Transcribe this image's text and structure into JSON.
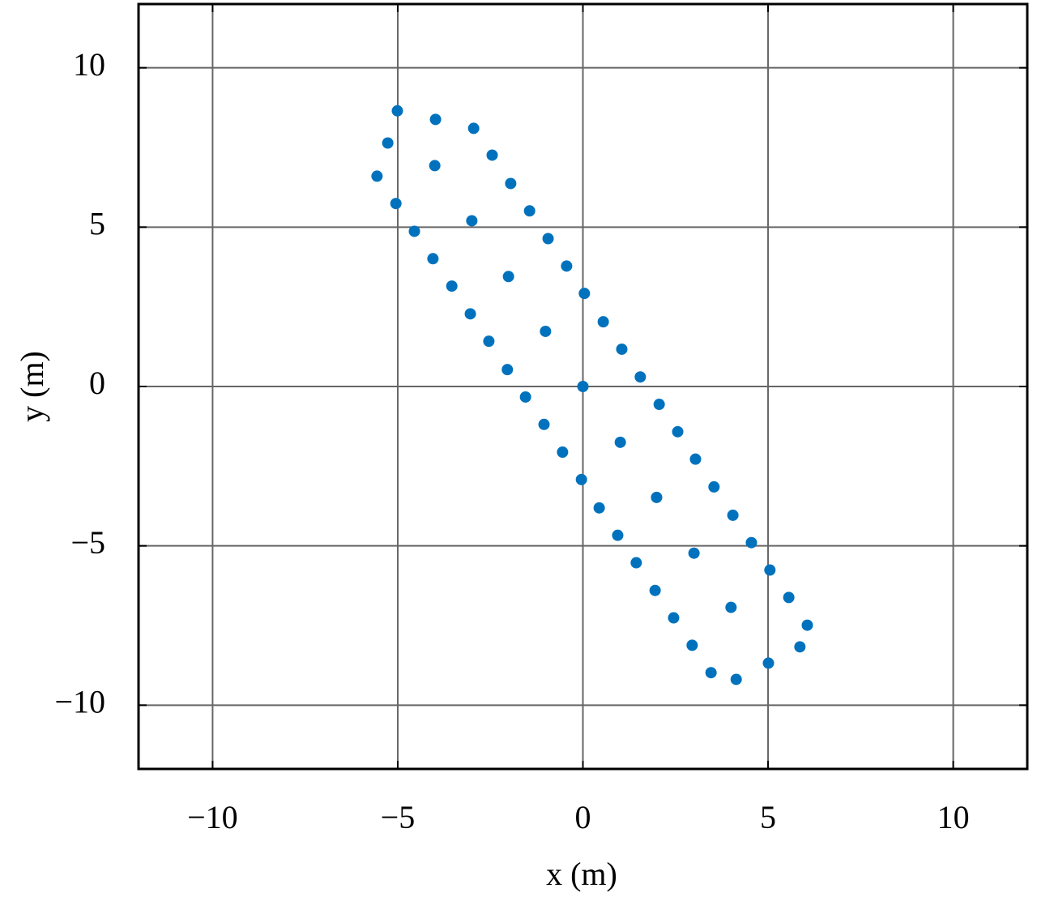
{
  "chart_data": {
    "type": "scatter",
    "xlabel": "x (m)",
    "ylabel": "y (m)",
    "color": "#0072bd",
    "grid": true,
    "xlim": [
      -12,
      12
    ],
    "ylim": [
      -12,
      12
    ],
    "xticks": [
      {
        "value": -10,
        "label": "−10"
      },
      {
        "value": -5,
        "label": "−5"
      },
      0,
      5,
      10
    ],
    "yticks": [
      {
        "value": -10,
        "label": "−10"
      },
      {
        "value": -5,
        "label": "−5"
      },
      0,
      5,
      10
    ],
    "x": [
      -5.01,
      -3.98,
      -2.95,
      -5.27,
      -2.45,
      -4.0,
      -5.56,
      -1.95,
      -5.05,
      -1.44,
      -3.0,
      -4.55,
      -0.94,
      -4.05,
      -0.44,
      -2.01,
      -3.54,
      0.04,
      -3.04,
      0.55,
      -1.01,
      -2.54,
      1.05,
      -2.04,
      1.55,
      0,
      -1.55,
      2.06,
      -1.05,
      2.56,
      1.01,
      -0.55,
      3.04,
      -0.04,
      3.54,
      1.99,
      0.44,
      4.05,
      0.94,
      4.55,
      3.0,
      1.44,
      5.05,
      1.95,
      5.56,
      4.0,
      2.45,
      6.06,
      2.95,
      5.86,
      3.46,
      5.01,
      4.14
    ],
    "values": [
      8.65,
      8.38,
      8.1,
      7.64,
      7.26,
      6.93,
      6.6,
      6.37,
      5.74,
      5.51,
      5.2,
      4.87,
      4.64,
      4.01,
      3.78,
      3.45,
      3.15,
      2.92,
      2.28,
      2.03,
      1.73,
      1.42,
      1.17,
      0.53,
      0.3,
      0,
      -0.33,
      -0.56,
      -1.19,
      -1.42,
      -1.75,
      -2.06,
      -2.28,
      -2.92,
      -3.15,
      -3.48,
      -3.81,
      -4.04,
      -4.67,
      -4.9,
      -5.23,
      -5.53,
      -5.76,
      -6.4,
      -6.62,
      -6.93,
      -7.26,
      -7.49,
      -8.12,
      -8.17,
      -8.98,
      -8.68,
      -9.19
    ]
  }
}
